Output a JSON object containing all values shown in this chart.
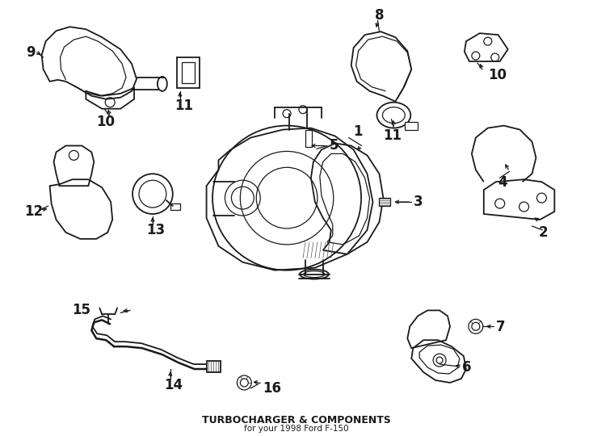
{
  "title": "TURBOCHARGER & COMPONENTS",
  "subtitle": "for your 1998 Ford F-150",
  "bg_color": "#ffffff",
  "line_color": "#1a1a1a",
  "fig_width": 7.34,
  "fig_height": 5.4,
  "dpi": 100
}
